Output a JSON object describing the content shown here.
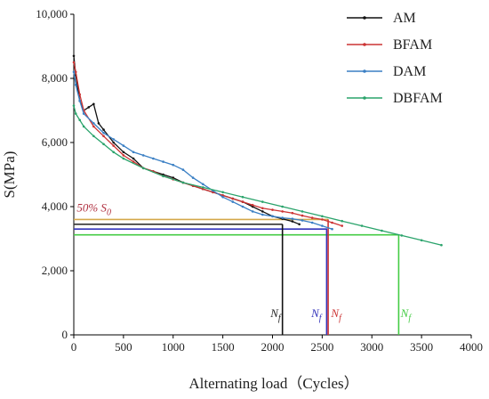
{
  "chart_data": {
    "type": "line",
    "title": "",
    "xlabel": "Alternating load（Cycles）",
    "ylabel": "S(MPa)",
    "xlim": [
      0,
      4000
    ],
    "ylim": [
      0,
      10000
    ],
    "x_ticks": [
      0,
      500,
      1000,
      1500,
      2000,
      2500,
      3000,
      3500,
      4000
    ],
    "x_tick_labels": [
      "0",
      "500",
      "1000",
      "1500",
      "2000",
      "2500",
      "3000",
      "3500",
      "4000"
    ],
    "y_ticks": [
      0,
      2000,
      4000,
      6000,
      8000,
      10000
    ],
    "y_tick_labels": [
      "0",
      "2,000",
      "4,000",
      "6,000",
      "8,000",
      "10,000"
    ],
    "legend_position": "top-right",
    "series": [
      {
        "name": "AM",
        "color": "#111111",
        "x": [
          0,
          20,
          60,
          100,
          150,
          200,
          250,
          300,
          400,
          500,
          600,
          700,
          800,
          900,
          1000,
          1100,
          1200,
          1300,
          1400,
          1500,
          1600,
          1700,
          1800,
          1900,
          2000,
          2100,
          2200,
          2270
        ],
        "y": [
          8700,
          8100,
          7300,
          7000,
          7100,
          7200,
          6600,
          6400,
          6000,
          5700,
          5500,
          5200,
          5100,
          5000,
          4900,
          4750,
          4650,
          4550,
          4450,
          4350,
          4250,
          4150,
          4000,
          3850,
          3700,
          3620,
          3540,
          3450
        ]
      },
      {
        "name": "BFAM",
        "color": "#cc3333",
        "x": [
          0,
          20,
          60,
          100,
          200,
          300,
          400,
          500,
          600,
          700,
          800,
          900,
          1000,
          1100,
          1200,
          1300,
          1400,
          1500,
          1600,
          1700,
          1800,
          1900,
          2000,
          2100,
          2200,
          2300,
          2400,
          2500,
          2600,
          2700
        ],
        "y": [
          8500,
          8200,
          7500,
          7000,
          6500,
          6200,
          5900,
          5600,
          5400,
          5200,
          5100,
          4950,
          4850,
          4750,
          4650,
          4550,
          4450,
          4350,
          4250,
          4150,
          4050,
          3950,
          3900,
          3850,
          3800,
          3720,
          3650,
          3600,
          3500,
          3400
        ]
      },
      {
        "name": "DAM",
        "color": "#3a7fc4",
        "x": [
          0,
          20,
          60,
          100,
          200,
          300,
          400,
          500,
          600,
          700,
          800,
          900,
          1000,
          1100,
          1200,
          1300,
          1400,
          1500,
          1600,
          1700,
          1800,
          1900,
          2000,
          2100,
          2200,
          2300,
          2400,
          2500,
          2600
        ],
        "y": [
          8200,
          7800,
          7300,
          6900,
          6600,
          6300,
          6100,
          5900,
          5700,
          5600,
          5500,
          5400,
          5300,
          5150,
          4900,
          4700,
          4500,
          4300,
          4150,
          4000,
          3850,
          3750,
          3700,
          3650,
          3620,
          3570,
          3500,
          3400,
          3300
        ]
      },
      {
        "name": "DBFAM",
        "color": "#2aa36b",
        "x": [
          0,
          20,
          60,
          100,
          200,
          300,
          400,
          500,
          700,
          900,
          1100,
          1300,
          1500,
          1700,
          1900,
          2100,
          2300,
          2500,
          2700,
          2900,
          3100,
          3300,
          3500,
          3700
        ],
        "y": [
          7150,
          6900,
          6700,
          6500,
          6200,
          5950,
          5700,
          5500,
          5200,
          4950,
          4750,
          4600,
          4450,
          4300,
          4150,
          4000,
          3850,
          3700,
          3550,
          3400,
          3250,
          3100,
          2950,
          2800
        ]
      }
    ],
    "reference_lines": [
      {
        "name": "50% S0 level",
        "color": "#d4a84a",
        "y": 3600,
        "x_end": 2560
      },
      {
        "name": "AM threshold",
        "color": "#333333",
        "y": 3450,
        "x_end": 2100
      },
      {
        "name": "DAM threshold",
        "color": "#3333bb",
        "y": 3300,
        "x_end": 2550
      },
      {
        "name": "DBFAM threshold",
        "color": "#44cc44",
        "y": 3120,
        "x_end": 3270
      }
    ],
    "failure_lines": [
      {
        "x": 2100,
        "color": "#111111",
        "y_top": 3450
      },
      {
        "x": 2545,
        "color": "#3333bb",
        "y_top": 3300
      },
      {
        "x": 2560,
        "color": "#cc3333",
        "y_top": 3600
      },
      {
        "x": 3270,
        "color": "#44cc44",
        "y_top": 3120
      }
    ],
    "annotations": [
      {
        "text_main": "50% S",
        "text_sub": "0",
        "color": "#b03040",
        "x": 30,
        "y": 3850
      },
      {
        "text_main": "N",
        "text_sub": "f",
        "color": "#222222",
        "x": 1980,
        "y": 560
      },
      {
        "text_main": "N",
        "text_sub": "f",
        "color": "#3333bb",
        "x": 2390,
        "y": 560
      },
      {
        "text_main": "N",
        "text_sub": "f",
        "color": "#cc3333",
        "x": 2590,
        "y": 560
      },
      {
        "text_main": "N",
        "text_sub": "f",
        "color": "#44cc44",
        "x": 3290,
        "y": 560
      }
    ]
  }
}
